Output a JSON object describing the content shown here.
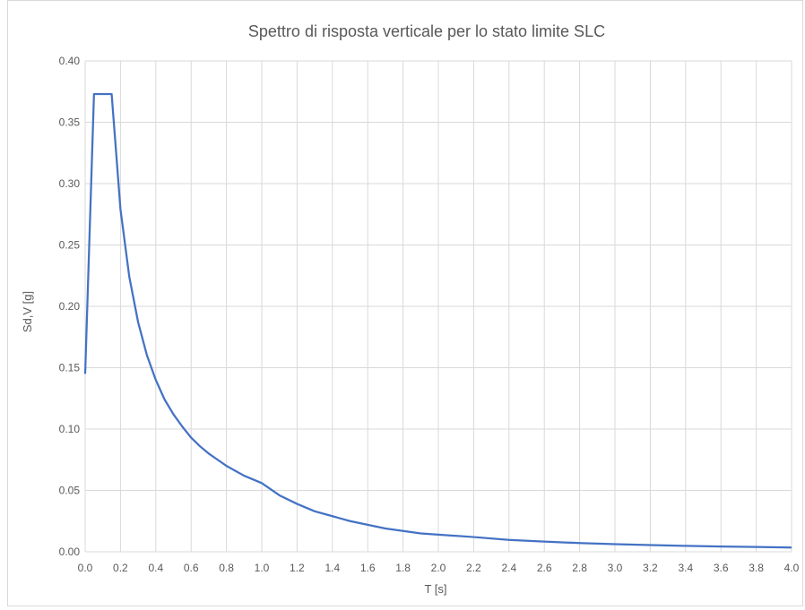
{
  "chart_data": {
    "type": "line",
    "title": "Spettro di risposta verticale per lo stato limite SLC",
    "xlabel": "T [s]",
    "ylabel": "Sd,V [g]",
    "xlim": [
      0.0,
      4.0
    ],
    "ylim": [
      0.0,
      0.4
    ],
    "x_ticks": [
      "0.0",
      "0.2",
      "0.4",
      "0.6",
      "0.8",
      "1.0",
      "1.2",
      "1.4",
      "1.6",
      "1.8",
      "2.0",
      "2.2",
      "2.4",
      "2.6",
      "2.8",
      "3.0",
      "3.2",
      "3.4",
      "3.6",
      "3.8",
      "4.0"
    ],
    "y_ticks": [
      "0.00",
      "0.05",
      "0.10",
      "0.15",
      "0.20",
      "0.25",
      "0.30",
      "0.35",
      "0.40"
    ],
    "grid": true,
    "legend": "none",
    "line_color": "#4472c4",
    "series": [
      {
        "x": [
          0.0,
          0.05,
          0.15,
          0.2,
          0.25,
          0.3,
          0.35,
          0.4,
          0.45,
          0.5,
          0.55,
          0.6,
          0.65,
          0.7,
          0.75,
          0.8,
          0.85,
          0.9,
          0.95,
          1.0,
          1.1,
          1.2,
          1.3,
          1.4,
          1.5,
          1.6,
          1.7,
          1.8,
          1.9,
          2.0,
          2.2,
          2.4,
          2.6,
          2.8,
          3.0,
          3.2,
          3.4,
          3.6,
          3.8,
          4.0
        ],
        "y": [
          0.145,
          0.373,
          0.373,
          0.279,
          0.224,
          0.187,
          0.16,
          0.14,
          0.124,
          0.112,
          0.102,
          0.093,
          0.086,
          0.08,
          0.075,
          0.07,
          0.066,
          0.062,
          0.059,
          0.056,
          0.046,
          0.039,
          0.033,
          0.029,
          0.025,
          0.022,
          0.019,
          0.017,
          0.015,
          0.014,
          0.012,
          0.0097,
          0.0083,
          0.0071,
          0.0062,
          0.0055,
          0.0048,
          0.0043,
          0.0039,
          0.0035
        ]
      }
    ]
  }
}
